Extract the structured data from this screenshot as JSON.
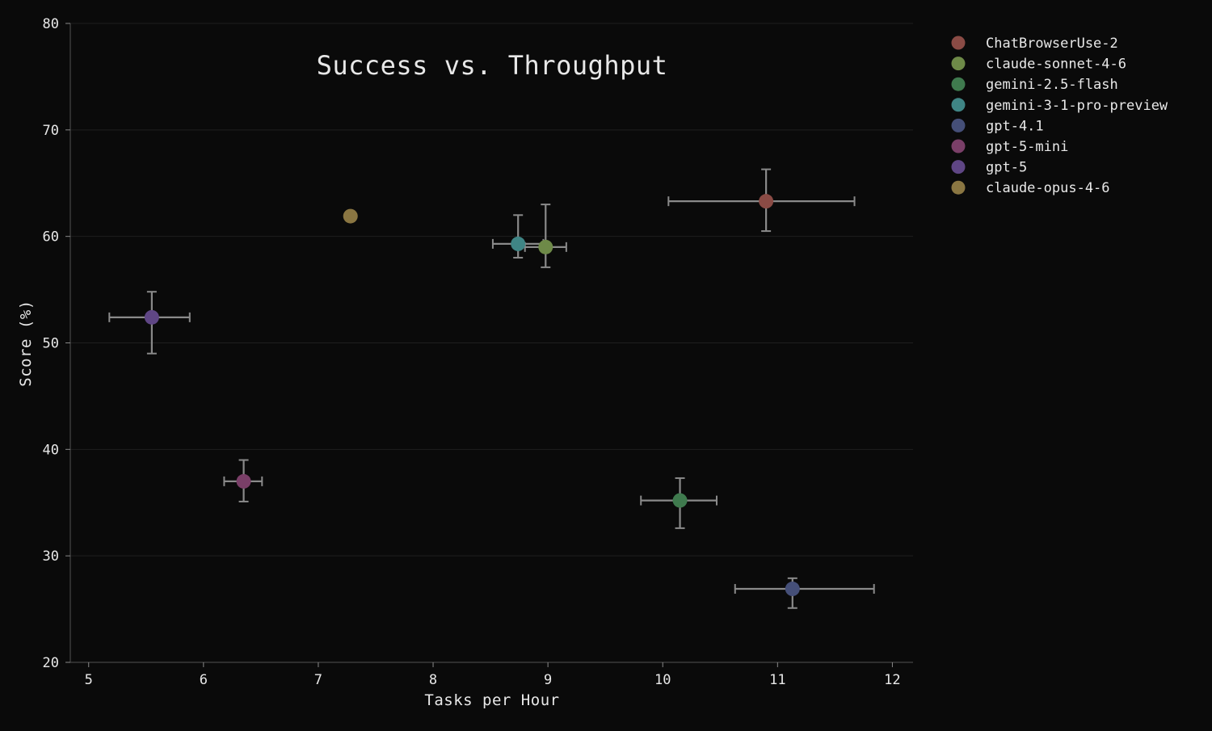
{
  "chart_data": {
    "type": "scatter",
    "title": "Success vs. Throughput",
    "xlabel": "Tasks per Hour",
    "ylabel": "Score (%)",
    "xlim": [
      4.84,
      12.18
    ],
    "ylim": [
      20,
      80
    ],
    "xticks": [
      5,
      6,
      7,
      8,
      9,
      10,
      11,
      12
    ],
    "yticks": [
      20,
      30,
      40,
      50,
      60,
      70,
      80
    ],
    "grid": "horizontal",
    "legend_position": "right",
    "background": "#0a0a0a",
    "errorbar_color": "#8a8a8a",
    "series": [
      {
        "name": "ChatBrowserUse-2",
        "color": "#8a4b45",
        "x": 10.9,
        "y": 63.3,
        "xerr": [
          10.05,
          11.67
        ],
        "yerr": [
          60.5,
          66.3
        ]
      },
      {
        "name": "claude-sonnet-4-6",
        "color": "#6e8a48",
        "x": 8.98,
        "y": 59.0,
        "xerr": [
          8.8,
          9.16
        ],
        "yerr": [
          57.1,
          63.0
        ]
      },
      {
        "name": "gemini-2.5-flash",
        "color": "#3f7a4e",
        "x": 10.15,
        "y": 35.2,
        "xerr": [
          9.81,
          10.47
        ],
        "yerr": [
          32.6,
          37.3
        ]
      },
      {
        "name": "gemini-3-1-pro-preview",
        "color": "#3f8585",
        "x": 8.74,
        "y": 59.3,
        "xerr": [
          8.52,
          8.96
        ],
        "yerr": [
          58.0,
          62.0
        ]
      },
      {
        "name": "gpt-4.1",
        "color": "#454f78",
        "x": 11.13,
        "y": 26.9,
        "xerr": [
          10.63,
          11.84
        ],
        "yerr": [
          25.1,
          27.9
        ]
      },
      {
        "name": "gpt-5-mini",
        "color": "#7a3f68",
        "x": 6.35,
        "y": 37.0,
        "xerr": [
          6.18,
          6.51
        ],
        "yerr": [
          35.1,
          39.0
        ]
      },
      {
        "name": "gpt-5",
        "color": "#5f4685",
        "x": 5.55,
        "y": 52.4,
        "xerr": [
          5.18,
          5.88
        ],
        "yerr": [
          49.0,
          54.8
        ]
      },
      {
        "name": "claude-opus-4-6",
        "color": "#8a7642",
        "x": 7.28,
        "y": 61.9,
        "xerr": null,
        "yerr": null
      }
    ]
  }
}
